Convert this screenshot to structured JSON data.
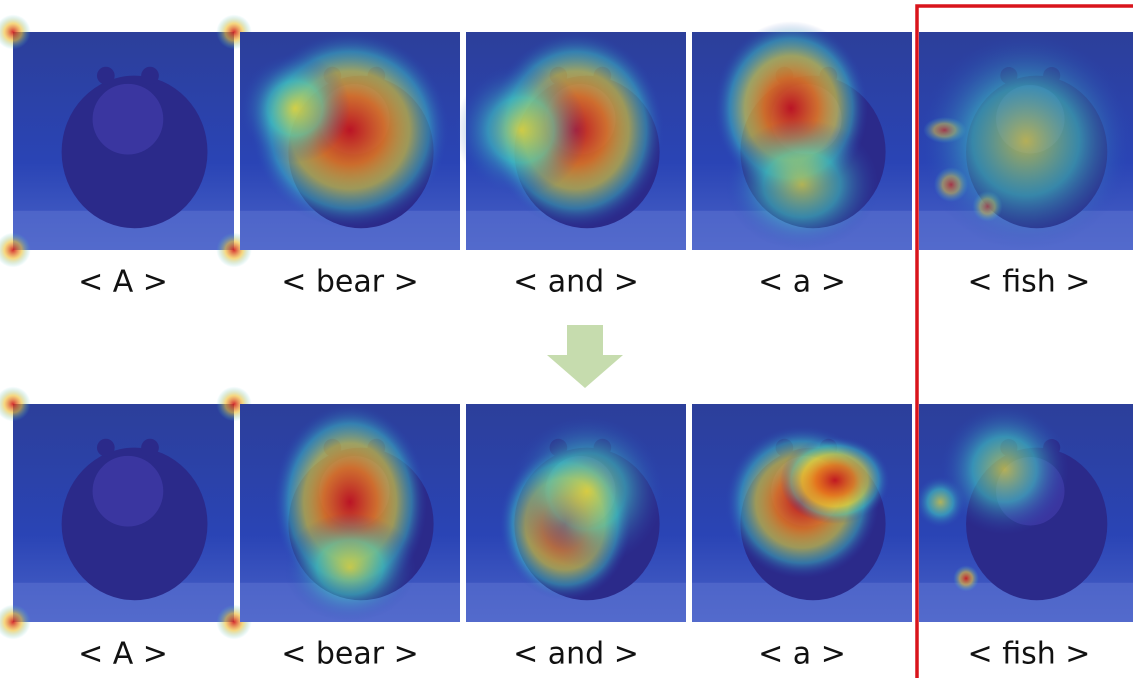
{
  "rows": [
    {
      "labels": [
        "< A >",
        "< bear >",
        "< and >",
        "< a >",
        "< fish >"
      ]
    },
    {
      "labels": [
        "< A >",
        "< bear >",
        "< and >",
        "< a >",
        "< fish >"
      ]
    }
  ]
}
